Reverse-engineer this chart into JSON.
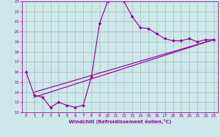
{
  "xlabel": "Windchill (Refroidissement éolien,°C)",
  "bg_color": "#cce8e8",
  "line_color": "#990099",
  "grid_color": "#9999aa",
  "xlim": [
    -0.5,
    23.5
  ],
  "ylim": [
    12,
    23
  ],
  "xticks": [
    0,
    1,
    2,
    3,
    4,
    5,
    6,
    7,
    8,
    9,
    10,
    11,
    12,
    13,
    14,
    15,
    16,
    17,
    18,
    19,
    20,
    21,
    22,
    23
  ],
  "yticks": [
    12,
    13,
    14,
    15,
    16,
    17,
    18,
    19,
    20,
    21,
    22,
    23
  ],
  "curve1_x": [
    0,
    1,
    2,
    3,
    4,
    5,
    6,
    7,
    8,
    9,
    10,
    11,
    12,
    13,
    14,
    15,
    16,
    17,
    18,
    19,
    20,
    21,
    22,
    23
  ],
  "curve1_y": [
    16.0,
    13.7,
    13.5,
    12.5,
    13.0,
    12.7,
    12.5,
    12.7,
    15.5,
    20.8,
    23.0,
    23.2,
    23.0,
    21.5,
    20.4,
    20.3,
    19.8,
    19.3,
    19.1,
    19.1,
    19.3,
    19.0,
    19.2,
    19.2
  ],
  "curve2_x": [
    1,
    23
  ],
  "curve2_y": [
    13.5,
    19.2
  ],
  "curve3_x": [
    1,
    23
  ],
  "curve3_y": [
    14.0,
    19.2
  ]
}
